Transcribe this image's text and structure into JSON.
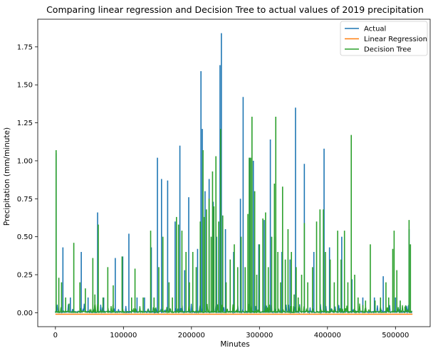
{
  "chart_data": {
    "type": "line",
    "title": "Comparing linear regression and Decision Tree to actual values of 2019 precipitation",
    "xlabel": "Minutes",
    "ylabel": "Precipitation (mm/minute)",
    "xlim": [
      -26000,
      551000
    ],
    "ylim": [
      -0.092,
      1.932
    ],
    "xticks": [
      0,
      100000,
      200000,
      300000,
      400000,
      500000
    ],
    "xtick_labels": [
      "0",
      "100000",
      "200000",
      "300000",
      "400000",
      "500000"
    ],
    "yticks": [
      0.0,
      0.25,
      0.5,
      0.75,
      1.0,
      1.25,
      1.5,
      1.75
    ],
    "ytick_labels": [
      "0.00",
      "0.25",
      "0.50",
      "0.75",
      "1.00",
      "1.25",
      "1.50",
      "1.75"
    ],
    "grid": false,
    "legend_position": "top-right",
    "series": [
      {
        "name": "Actual",
        "color": "#1f77b4",
        "spikes": [
          [
            1000,
            1.05
          ],
          [
            11000,
            0.43
          ],
          [
            22000,
            0.1
          ],
          [
            38000,
            0.4
          ],
          [
            48000,
            0.1
          ],
          [
            62000,
            0.66
          ],
          [
            71000,
            0.1
          ],
          [
            88000,
            0.36
          ],
          [
            99000,
            0.37
          ],
          [
            108000,
            0.52
          ],
          [
            120000,
            0.1
          ],
          [
            131000,
            0.1
          ],
          [
            141000,
            0.43
          ],
          [
            150000,
            1.02
          ],
          [
            156000,
            0.88
          ],
          [
            165000,
            0.87
          ],
          [
            176000,
            0.6
          ],
          [
            183000,
            1.1
          ],
          [
            190000,
            0.28
          ],
          [
            196000,
            0.76
          ],
          [
            209000,
            0.42
          ],
          [
            214000,
            1.59
          ],
          [
            216000,
            1.21
          ],
          [
            220000,
            0.8
          ],
          [
            226000,
            0.88
          ],
          [
            232000,
            0.73
          ],
          [
            237000,
            0.5
          ],
          [
            242000,
            1.63
          ],
          [
            244000,
            1.84
          ],
          [
            250000,
            0.55
          ],
          [
            262000,
            0.4
          ],
          [
            272000,
            0.75
          ],
          [
            276000,
            1.42
          ],
          [
            286000,
            1.02
          ],
          [
            291000,
            1.0
          ],
          [
            299000,
            0.45
          ],
          [
            307000,
            0.61
          ],
          [
            316000,
            1.14
          ],
          [
            324000,
            0.5
          ],
          [
            333000,
            0.4
          ],
          [
            345000,
            0.35
          ],
          [
            353000,
            1.35
          ],
          [
            366000,
            0.98
          ],
          [
            380000,
            0.4
          ],
          [
            395000,
            1.08
          ],
          [
            403000,
            0.43
          ],
          [
            421000,
            0.5
          ],
          [
            436000,
            0.22
          ],
          [
            452000,
            0.1
          ],
          [
            469000,
            0.1
          ],
          [
            482000,
            0.24
          ],
          [
            500000,
            0.1
          ],
          [
            520000,
            0.55
          ]
        ]
      },
      {
        "name": "Linear Regression",
        "color": "#ff7f0e",
        "baseline": -0.01
      },
      {
        "name": "Decision Tree",
        "color": "#2ca02c",
        "spikes": [
          [
            1000,
            1.07
          ],
          [
            5000,
            0.23
          ],
          [
            9000,
            0.2
          ],
          [
            15000,
            0.1
          ],
          [
            20000,
            0.06
          ],
          [
            27000,
            0.46
          ],
          [
            36000,
            0.2
          ],
          [
            44000,
            0.16
          ],
          [
            55000,
            0.36
          ],
          [
            58000,
            0.12
          ],
          [
            63000,
            0.58
          ],
          [
            70000,
            0.1
          ],
          [
            77000,
            0.3
          ],
          [
            85000,
            0.18
          ],
          [
            98000,
            0.37
          ],
          [
            112000,
            0.1
          ],
          [
            117000,
            0.29
          ],
          [
            129000,
            0.1
          ],
          [
            140000,
            0.54
          ],
          [
            145000,
            0.1
          ],
          [
            152000,
            0.3
          ],
          [
            158000,
            0.5
          ],
          [
            167000,
            0.2
          ],
          [
            172000,
            0.1
          ],
          [
            178000,
            0.63
          ],
          [
            181000,
            0.58
          ],
          [
            186000,
            0.54
          ],
          [
            192000,
            0.4
          ],
          [
            197000,
            0.2
          ],
          [
            202000,
            0.4
          ],
          [
            207000,
            0.3
          ],
          [
            213000,
            0.6
          ],
          [
            217000,
            1.07
          ],
          [
            219000,
            0.63
          ],
          [
            222000,
            0.68
          ],
          [
            226000,
            0.75
          ],
          [
            229000,
            0.5
          ],
          [
            231000,
            0.93
          ],
          [
            233000,
            0.7
          ],
          [
            236000,
            1.03
          ],
          [
            240000,
            0.6
          ],
          [
            243000,
            1.21
          ],
          [
            246000,
            0.64
          ],
          [
            251000,
            0.2
          ],
          [
            257000,
            0.35
          ],
          [
            263000,
            0.45
          ],
          [
            268000,
            0.3
          ],
          [
            273000,
            0.5
          ],
          [
            279000,
            0.3
          ],
          [
            283000,
            0.65
          ],
          [
            285000,
            1.02
          ],
          [
            287000,
            1.02
          ],
          [
            289000,
            1.29
          ],
          [
            293000,
            0.8
          ],
          [
            296000,
            0.25
          ],
          [
            300000,
            0.45
          ],
          [
            305000,
            0.62
          ],
          [
            309000,
            0.66
          ],
          [
            313000,
            0.3
          ],
          [
            318000,
            0.5
          ],
          [
            322000,
            0.85
          ],
          [
            324000,
            1.29
          ],
          [
            327000,
            0.4
          ],
          [
            331000,
            0.2
          ],
          [
            334000,
            0.83
          ],
          [
            338000,
            0.35
          ],
          [
            342000,
            0.55
          ],
          [
            347000,
            0.4
          ],
          [
            351000,
            0.12
          ],
          [
            354000,
            0.3
          ],
          [
            357000,
            0.1
          ],
          [
            362000,
            0.25
          ],
          [
            366000,
            0.59
          ],
          [
            371000,
            0.2
          ],
          [
            378000,
            0.3
          ],
          [
            384000,
            0.6
          ],
          [
            389000,
            0.68
          ],
          [
            394000,
            0.68
          ],
          [
            397000,
            0.4
          ],
          [
            404000,
            0.35
          ],
          [
            410000,
            0.2
          ],
          [
            415000,
            0.54
          ],
          [
            420000,
            0.35
          ],
          [
            425000,
            0.54
          ],
          [
            430000,
            0.2
          ],
          [
            435000,
            1.17
          ],
          [
            440000,
            0.25
          ],
          [
            445000,
            0.1
          ],
          [
            452000,
            0.05
          ],
          [
            456000,
            0.08
          ],
          [
            463000,
            0.45
          ],
          [
            470000,
            0.08
          ],
          [
            478000,
            0.1
          ],
          [
            486000,
            0.2
          ],
          [
            490000,
            0.1
          ],
          [
            496000,
            0.42
          ],
          [
            498000,
            0.54
          ],
          [
            502000,
            0.28
          ],
          [
            507000,
            0.08
          ],
          [
            514000,
            0.04
          ],
          [
            520000,
            0.61
          ],
          [
            522000,
            0.45
          ]
        ]
      }
    ]
  }
}
